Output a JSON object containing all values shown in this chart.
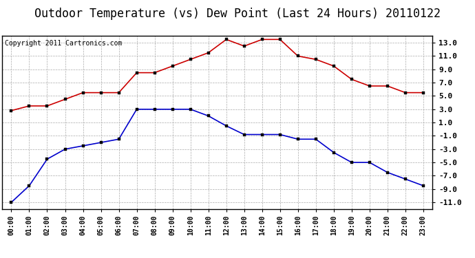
{
  "title": "Outdoor Temperature (vs) Dew Point (Last 24 Hours) 20110122",
  "copyright_text": "Copyright 2011 Cartronics.com",
  "hours": [
    "00:00",
    "01:00",
    "02:00",
    "03:00",
    "04:00",
    "05:00",
    "06:00",
    "07:00",
    "08:00",
    "09:00",
    "10:00",
    "11:00",
    "12:00",
    "13:00",
    "14:00",
    "15:00",
    "16:00",
    "17:00",
    "18:00",
    "19:00",
    "20:00",
    "21:00",
    "22:00",
    "23:00"
  ],
  "temp_red": [
    2.8,
    3.5,
    3.5,
    4.5,
    5.5,
    5.5,
    5.5,
    8.5,
    8.5,
    9.5,
    10.5,
    11.5,
    13.5,
    12.5,
    13.5,
    13.5,
    11.0,
    10.5,
    9.5,
    7.5,
    6.5,
    6.5,
    5.5,
    5.5
  ],
  "dew_blue": [
    -11.0,
    -8.5,
    -4.5,
    -3.0,
    -2.5,
    -2.0,
    -1.5,
    3.0,
    3.0,
    3.0,
    3.0,
    2.0,
    0.5,
    -0.8,
    -0.8,
    -0.8,
    -1.5,
    -1.5,
    -3.5,
    -5.0,
    -5.0,
    -6.5,
    -7.5,
    -8.5
  ],
  "ylim": [
    -12.0,
    14.0
  ],
  "yticks": [
    -11.0,
    -9.0,
    -7.0,
    -5.0,
    -3.0,
    -1.0,
    1.0,
    3.0,
    5.0,
    7.0,
    9.0,
    11.0,
    13.0
  ],
  "bg_color": "#ffffff",
  "plot_bg_color": "#ffffff",
  "grid_color": "#aaaaaa",
  "red_color": "#cc0000",
  "blue_color": "#0000cc",
  "title_fontsize": 12,
  "copyright_fontsize": 7
}
